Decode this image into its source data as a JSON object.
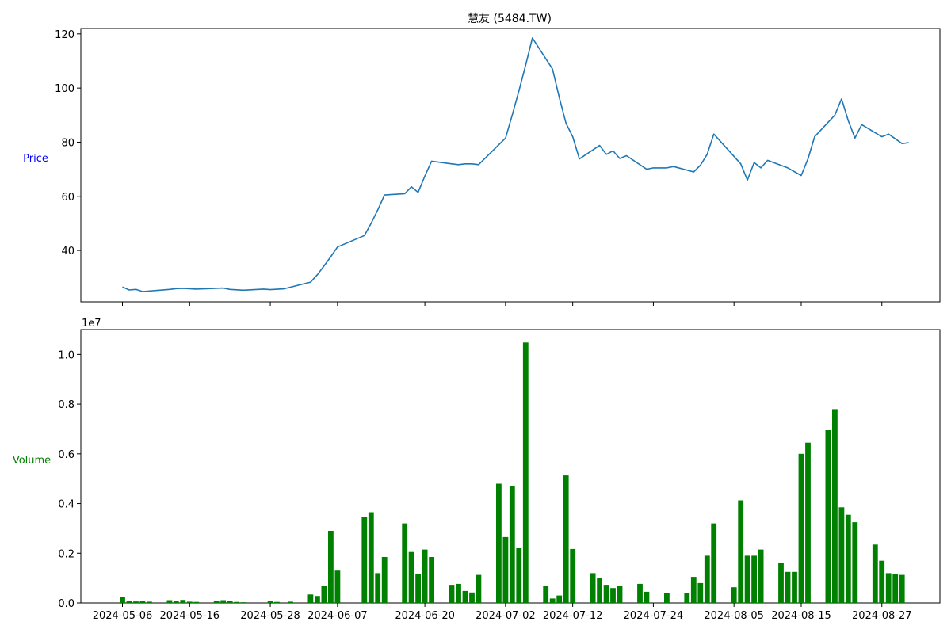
{
  "colors": {
    "price_line": "#1f77b4",
    "volume_bar": "#008000",
    "price_label": "#0000ff",
    "volume_label": "#008000",
    "axis": "#000000"
  },
  "chart_data": [
    {
      "type": "line",
      "title": "慧友 (5484.TW)",
      "ylabel": "Price",
      "ylim": [
        21,
        122
      ],
      "yticks": [
        40,
        60,
        80,
        100,
        120
      ],
      "grid": false,
      "series": [
        {
          "points": [
            [
              "2024-05-06",
              26.5
            ],
            [
              "2024-05-07",
              25.4
            ],
            [
              "2024-05-08",
              25.6
            ],
            [
              "2024-05-09",
              24.8
            ],
            [
              "2024-05-13",
              25.6
            ],
            [
              "2024-05-14",
              25.9
            ],
            [
              "2024-05-15",
              26.0
            ],
            [
              "2024-05-17",
              25.7
            ],
            [
              "2024-05-21",
              26.1
            ],
            [
              "2024-05-22",
              25.6
            ],
            [
              "2024-05-24",
              25.3
            ],
            [
              "2024-05-27",
              25.7
            ],
            [
              "2024-05-28",
              25.5
            ],
            [
              "2024-05-30",
              25.8
            ],
            [
              "2024-06-03",
              28.3
            ],
            [
              "2024-06-04",
              31.0
            ],
            [
              "2024-06-05",
              34.3
            ],
            [
              "2024-06-06",
              37.7
            ],
            [
              "2024-06-07",
              41.3
            ],
            [
              "2024-06-11",
              45.5
            ],
            [
              "2024-06-12",
              50.0
            ],
            [
              "2024-06-13",
              55.0
            ],
            [
              "2024-06-14",
              60.5
            ],
            [
              "2024-06-17",
              61.0
            ],
            [
              "2024-06-18",
              63.5
            ],
            [
              "2024-06-19",
              61.5
            ],
            [
              "2024-06-20",
              67.5
            ],
            [
              "2024-06-21",
              73.0
            ],
            [
              "2024-06-24",
              72.0
            ],
            [
              "2024-06-25",
              71.7
            ],
            [
              "2024-06-26",
              72.0
            ],
            [
              "2024-06-27",
              72.0
            ],
            [
              "2024-06-28",
              71.7
            ],
            [
              "2024-07-02",
              81.5
            ],
            [
              "2024-07-03",
              90.0
            ],
            [
              "2024-07-04",
              99.0
            ],
            [
              "2024-07-05",
              108.5
            ],
            [
              "2024-07-06",
              118.5
            ],
            [
              "2024-07-09",
              107.0
            ],
            [
              "2024-07-10",
              96.5
            ],
            [
              "2024-07-11",
              87.0
            ],
            [
              "2024-07-12",
              82.0
            ],
            [
              "2024-07-13",
              73.8
            ],
            [
              "2024-07-16",
              78.8
            ],
            [
              "2024-07-17",
              75.5
            ],
            [
              "2024-07-18",
              76.8
            ],
            [
              "2024-07-19",
              74.0
            ],
            [
              "2024-07-20",
              75.0
            ],
            [
              "2024-07-23",
              70.0
            ],
            [
              "2024-07-24",
              70.5
            ],
            [
              "2024-07-26",
              70.5
            ],
            [
              "2024-07-27",
              71.0
            ],
            [
              "2024-07-30",
              69.0
            ],
            [
              "2024-07-31",
              71.5
            ],
            [
              "2024-08-01",
              75.5
            ],
            [
              "2024-08-02",
              83.0
            ],
            [
              "2024-08-06",
              72.0
            ],
            [
              "2024-08-07",
              66.0
            ],
            [
              "2024-08-08",
              72.5
            ],
            [
              "2024-08-09",
              70.5
            ],
            [
              "2024-08-10",
              73.3
            ],
            [
              "2024-08-13",
              70.5
            ],
            [
              "2024-08-15",
              67.7
            ],
            [
              "2024-08-16",
              73.8
            ],
            [
              "2024-08-17",
              82.0
            ],
            [
              "2024-08-20",
              90.0
            ],
            [
              "2024-08-21",
              96.0
            ],
            [
              "2024-08-22",
              88.0
            ],
            [
              "2024-08-23",
              81.5
            ],
            [
              "2024-08-24",
              86.5
            ],
            [
              "2024-08-27",
              82.0
            ],
            [
              "2024-08-28",
              83.0
            ],
            [
              "2024-08-30",
              79.5
            ],
            [
              "2024-08-31",
              79.8
            ]
          ]
        }
      ],
      "x_ticks": [
        "2024-05-06",
        "2024-05-16",
        "2024-05-28",
        "2024-06-07",
        "2024-06-20",
        "2024-07-02",
        "2024-07-12",
        "2024-07-24",
        "2024-08-05",
        "2024-08-15",
        "2024-08-27"
      ],
      "x_tick_labels_shown": false
    },
    {
      "type": "bar",
      "ylabel": "Volume",
      "y_offset_label": "1e7",
      "ylim": [
        0,
        1.1
      ],
      "yticks": [
        "0.0",
        "0.2",
        "0.4",
        "0.6",
        "0.8",
        "1.0"
      ],
      "grid": false,
      "x_ticks": [
        "2024-05-06",
        "2024-05-16",
        "2024-05-28",
        "2024-06-07",
        "2024-06-20",
        "2024-07-02",
        "2024-07-12",
        "2024-07-24",
        "2024-08-05",
        "2024-08-15",
        "2024-08-27"
      ],
      "series": [
        {
          "points": [
            [
              "2024-05-06",
              0.024
            ],
            [
              "2024-05-07",
              0.008
            ],
            [
              "2024-05-08",
              0.006
            ],
            [
              "2024-05-09",
              0.009
            ],
            [
              "2024-05-10",
              0.005
            ],
            [
              "2024-05-13",
              0.011
            ],
            [
              "2024-05-14",
              0.009
            ],
            [
              "2024-05-15",
              0.012
            ],
            [
              "2024-05-16",
              0.005
            ],
            [
              "2024-05-17",
              0.004
            ],
            [
              "2024-05-20",
              0.007
            ],
            [
              "2024-05-21",
              0.011
            ],
            [
              "2024-05-22",
              0.008
            ],
            [
              "2024-05-23",
              0.004
            ],
            [
              "2024-05-24",
              0.003
            ],
            [
              "2024-05-28",
              0.007
            ],
            [
              "2024-05-29",
              0.004
            ],
            [
              "2024-05-31",
              0.005
            ],
            [
              "2024-06-03",
              0.034
            ],
            [
              "2024-06-04",
              0.028
            ],
            [
              "2024-06-05",
              0.067
            ],
            [
              "2024-06-06",
              0.29
            ],
            [
              "2024-06-07",
              0.13
            ],
            [
              "2024-06-11",
              0.345
            ],
            [
              "2024-06-12",
              0.365
            ],
            [
              "2024-06-13",
              0.12
            ],
            [
              "2024-06-14",
              0.185
            ],
            [
              "2024-06-17",
              0.32
            ],
            [
              "2024-06-18",
              0.205
            ],
            [
              "2024-06-19",
              0.118
            ],
            [
              "2024-06-20",
              0.215
            ],
            [
              "2024-06-21",
              0.185
            ],
            [
              "2024-06-24",
              0.073
            ],
            [
              "2024-06-25",
              0.077
            ],
            [
              "2024-06-26",
              0.048
            ],
            [
              "2024-06-27",
              0.042
            ],
            [
              "2024-06-28",
              0.113
            ],
            [
              "2024-07-01",
              0.48
            ],
            [
              "2024-07-02",
              0.265
            ],
            [
              "2024-07-03",
              0.47
            ],
            [
              "2024-07-04",
              0.22
            ],
            [
              "2024-07-05",
              1.048
            ],
            [
              "2024-07-08",
              0.07
            ],
            [
              "2024-07-09",
              0.018
            ],
            [
              "2024-07-10",
              0.03
            ],
            [
              "2024-07-11",
              0.513
            ],
            [
              "2024-07-12",
              0.217
            ],
            [
              "2024-07-15",
              0.12
            ],
            [
              "2024-07-16",
              0.1
            ],
            [
              "2024-07-17",
              0.073
            ],
            [
              "2024-07-18",
              0.06
            ],
            [
              "2024-07-19",
              0.07
            ],
            [
              "2024-07-22",
              0.077
            ],
            [
              "2024-07-23",
              0.045
            ],
            [
              "2024-07-26",
              0.04
            ],
            [
              "2024-07-29",
              0.04
            ],
            [
              "2024-07-30",
              0.105
            ],
            [
              "2024-07-31",
              0.08
            ],
            [
              "2024-08-01",
              0.19
            ],
            [
              "2024-08-02",
              0.32
            ],
            [
              "2024-08-05",
              0.063
            ],
            [
              "2024-08-06",
              0.413
            ],
            [
              "2024-08-07",
              0.19
            ],
            [
              "2024-08-08",
              0.19
            ],
            [
              "2024-08-09",
              0.215
            ],
            [
              "2024-08-12",
              0.16
            ],
            [
              "2024-08-13",
              0.125
            ],
            [
              "2024-08-14",
              0.125
            ],
            [
              "2024-08-15",
              0.6
            ],
            [
              "2024-08-16",
              0.645
            ],
            [
              "2024-08-19",
              0.695
            ],
            [
              "2024-08-20",
              0.78
            ],
            [
              "2024-08-21",
              0.385
            ],
            [
              "2024-08-22",
              0.355
            ],
            [
              "2024-08-23",
              0.325
            ],
            [
              "2024-08-26",
              0.235
            ],
            [
              "2024-08-27",
              0.17
            ],
            [
              "2024-08-28",
              0.12
            ],
            [
              "2024-08-29",
              0.118
            ],
            [
              "2024-08-30",
              0.113
            ]
          ]
        }
      ]
    }
  ]
}
